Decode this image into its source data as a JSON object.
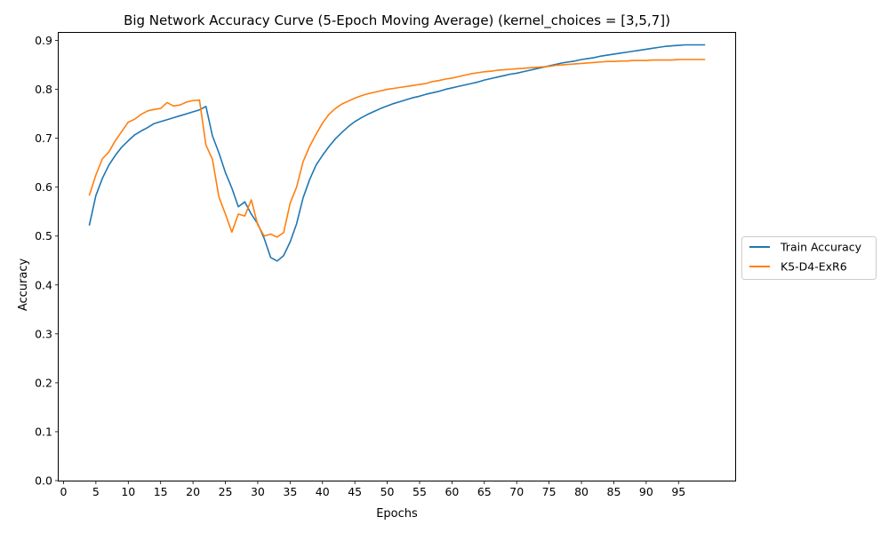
{
  "chart_data": {
    "type": "line",
    "title": "Big Network Accuracy Curve (5-Epoch Moving Average) (kernel_choices = [3,5,7])",
    "xlabel": "Epochs",
    "ylabel": "Accuracy",
    "xlim": [
      -0.75,
      103.75
    ],
    "ylim": [
      0.0,
      0.9155
    ],
    "x_ticks": [
      0,
      5,
      10,
      15,
      20,
      25,
      30,
      35,
      40,
      45,
      50,
      55,
      60,
      65,
      70,
      75,
      80,
      85,
      90,
      95
    ],
    "y_ticks": [
      0.0,
      0.1,
      0.2,
      0.3,
      0.4,
      0.5,
      0.6,
      0.7,
      0.8,
      0.9
    ],
    "y_tick_labels": [
      "0.0",
      "0.1",
      "0.2",
      "0.3",
      "0.4",
      "0.5",
      "0.6",
      "0.7",
      "0.8",
      "0.9"
    ],
    "grid": false,
    "legend_position": "right, outside plot",
    "x": [
      4,
      5,
      6,
      7,
      8,
      9,
      10,
      11,
      12,
      13,
      14,
      15,
      16,
      17,
      18,
      19,
      20,
      21,
      22,
      23,
      24,
      25,
      26,
      27,
      28,
      29,
      30,
      31,
      32,
      33,
      34,
      35,
      36,
      37,
      38,
      39,
      40,
      41,
      42,
      43,
      44,
      45,
      46,
      47,
      48,
      49,
      50,
      51,
      52,
      53,
      54,
      55,
      56,
      57,
      58,
      59,
      60,
      61,
      62,
      63,
      64,
      65,
      66,
      67,
      68,
      69,
      70,
      71,
      72,
      73,
      74,
      75,
      76,
      77,
      78,
      79,
      80,
      81,
      82,
      83,
      84,
      85,
      86,
      87,
      88,
      89,
      90,
      91,
      92,
      93,
      94,
      95,
      96,
      97,
      98,
      99
    ],
    "series": [
      {
        "name": "Train Accuracy",
        "color": "#1f77b4",
        "values": [
          0.523,
          0.583,
          0.618,
          0.645,
          0.665,
          0.682,
          0.695,
          0.707,
          0.715,
          0.722,
          0.73,
          0.734,
          0.738,
          0.742,
          0.746,
          0.75,
          0.754,
          0.758,
          0.765,
          0.705,
          0.67,
          0.63,
          0.598,
          0.56,
          0.57,
          0.545,
          0.525,
          0.495,
          0.456,
          0.449,
          0.46,
          0.488,
          0.525,
          0.578,
          0.615,
          0.645,
          0.665,
          0.683,
          0.699,
          0.712,
          0.724,
          0.734,
          0.742,
          0.749,
          0.755,
          0.761,
          0.766,
          0.771,
          0.775,
          0.779,
          0.783,
          0.786,
          0.79,
          0.793,
          0.796,
          0.8,
          0.803,
          0.806,
          0.809,
          0.812,
          0.815,
          0.819,
          0.822,
          0.825,
          0.828,
          0.831,
          0.833,
          0.836,
          0.839,
          0.842,
          0.845,
          0.848,
          0.851,
          0.854,
          0.856,
          0.858,
          0.861,
          0.863,
          0.865,
          0.868,
          0.87,
          0.872,
          0.874,
          0.876,
          0.878,
          0.88,
          0.882,
          0.884,
          0.886,
          0.888,
          0.889,
          0.89,
          0.891,
          0.891,
          0.891,
          0.891
        ]
      },
      {
        "name": "K5-D4-ExR6",
        "color": "#ff7f0e",
        "values": [
          0.584,
          0.625,
          0.658,
          0.672,
          0.695,
          0.714,
          0.733,
          0.739,
          0.749,
          0.756,
          0.759,
          0.761,
          0.773,
          0.766,
          0.768,
          0.774,
          0.777,
          0.778,
          0.686,
          0.657,
          0.58,
          0.545,
          0.508,
          0.545,
          0.541,
          0.574,
          0.523,
          0.5,
          0.504,
          0.498,
          0.507,
          0.567,
          0.6,
          0.652,
          0.683,
          0.708,
          0.731,
          0.749,
          0.761,
          0.77,
          0.776,
          0.782,
          0.787,
          0.791,
          0.794,
          0.797,
          0.8,
          0.802,
          0.804,
          0.806,
          0.808,
          0.81,
          0.812,
          0.816,
          0.818,
          0.821,
          0.823,
          0.826,
          0.829,
          0.832,
          0.834,
          0.836,
          0.837,
          0.839,
          0.84,
          0.841,
          0.842,
          0.843,
          0.844,
          0.845,
          0.846,
          0.847,
          0.849,
          0.85,
          0.851,
          0.852,
          0.853,
          0.854,
          0.855,
          0.856,
          0.857,
          0.857,
          0.858,
          0.858,
          0.859,
          0.859,
          0.859,
          0.86,
          0.86,
          0.86,
          0.86,
          0.861,
          0.861,
          0.861,
          0.861,
          0.861
        ]
      }
    ]
  }
}
